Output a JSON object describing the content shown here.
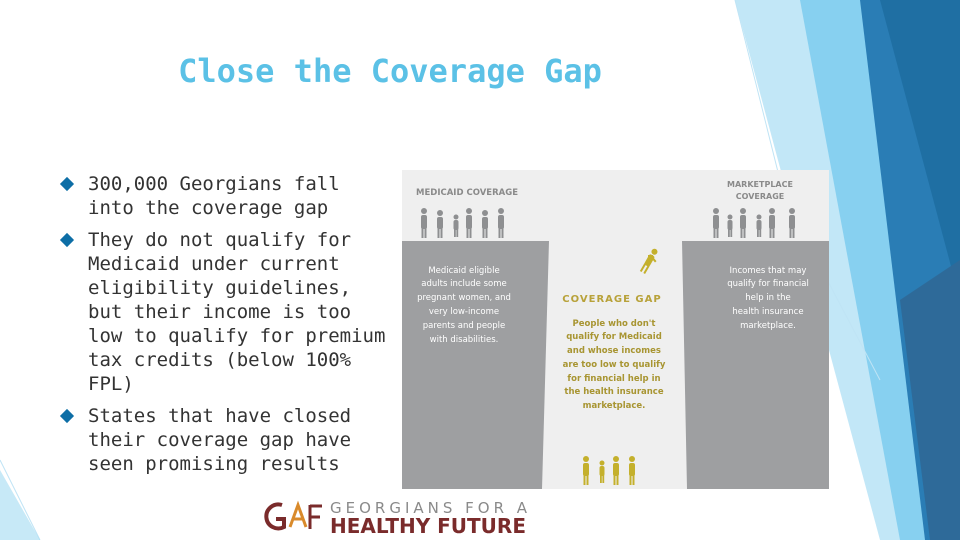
{
  "slide": {
    "title": "Close the Coverage Gap",
    "bullets": [
      "300,000 Georgians fall into the coverage gap",
      "They do not qualify for Medicaid under current eligibility guidelines, but their income is too low to qualify for premium tax credits (below 100% FPL)",
      "States that have closed their coverage gap have seen promising results"
    ],
    "colors": {
      "title": "#5bc1e6",
      "bullet": "#0d6ea6",
      "accent_dark": "#1f6fa3",
      "accent_light": "#6ec6ec"
    }
  },
  "graphic": {
    "medicaid_label": "MEDICAID COVERAGE",
    "marketplace_label_1": "MARKETPLACE",
    "marketplace_label_2": "COVERAGE",
    "medicaid_text": [
      "Medicaid eligible",
      "adults include some",
      "pregnant women, and",
      "very low-income",
      "parents and people",
      "with disabilities."
    ],
    "gap_label": "COVERAGE GAP",
    "gap_text": [
      "People who don't",
      "qualify for Medicaid",
      "and whose incomes",
      "are too low to qualify",
      "for financial help in",
      "the health insurance",
      "marketplace."
    ],
    "marketplace_text": [
      "Incomes that may",
      "qualify for financial",
      "help in the",
      "health insurance",
      "marketplace."
    ]
  },
  "logo": {
    "line1": "GEORGIANS FOR A",
    "line2": "HEALTHY FUTURE"
  }
}
